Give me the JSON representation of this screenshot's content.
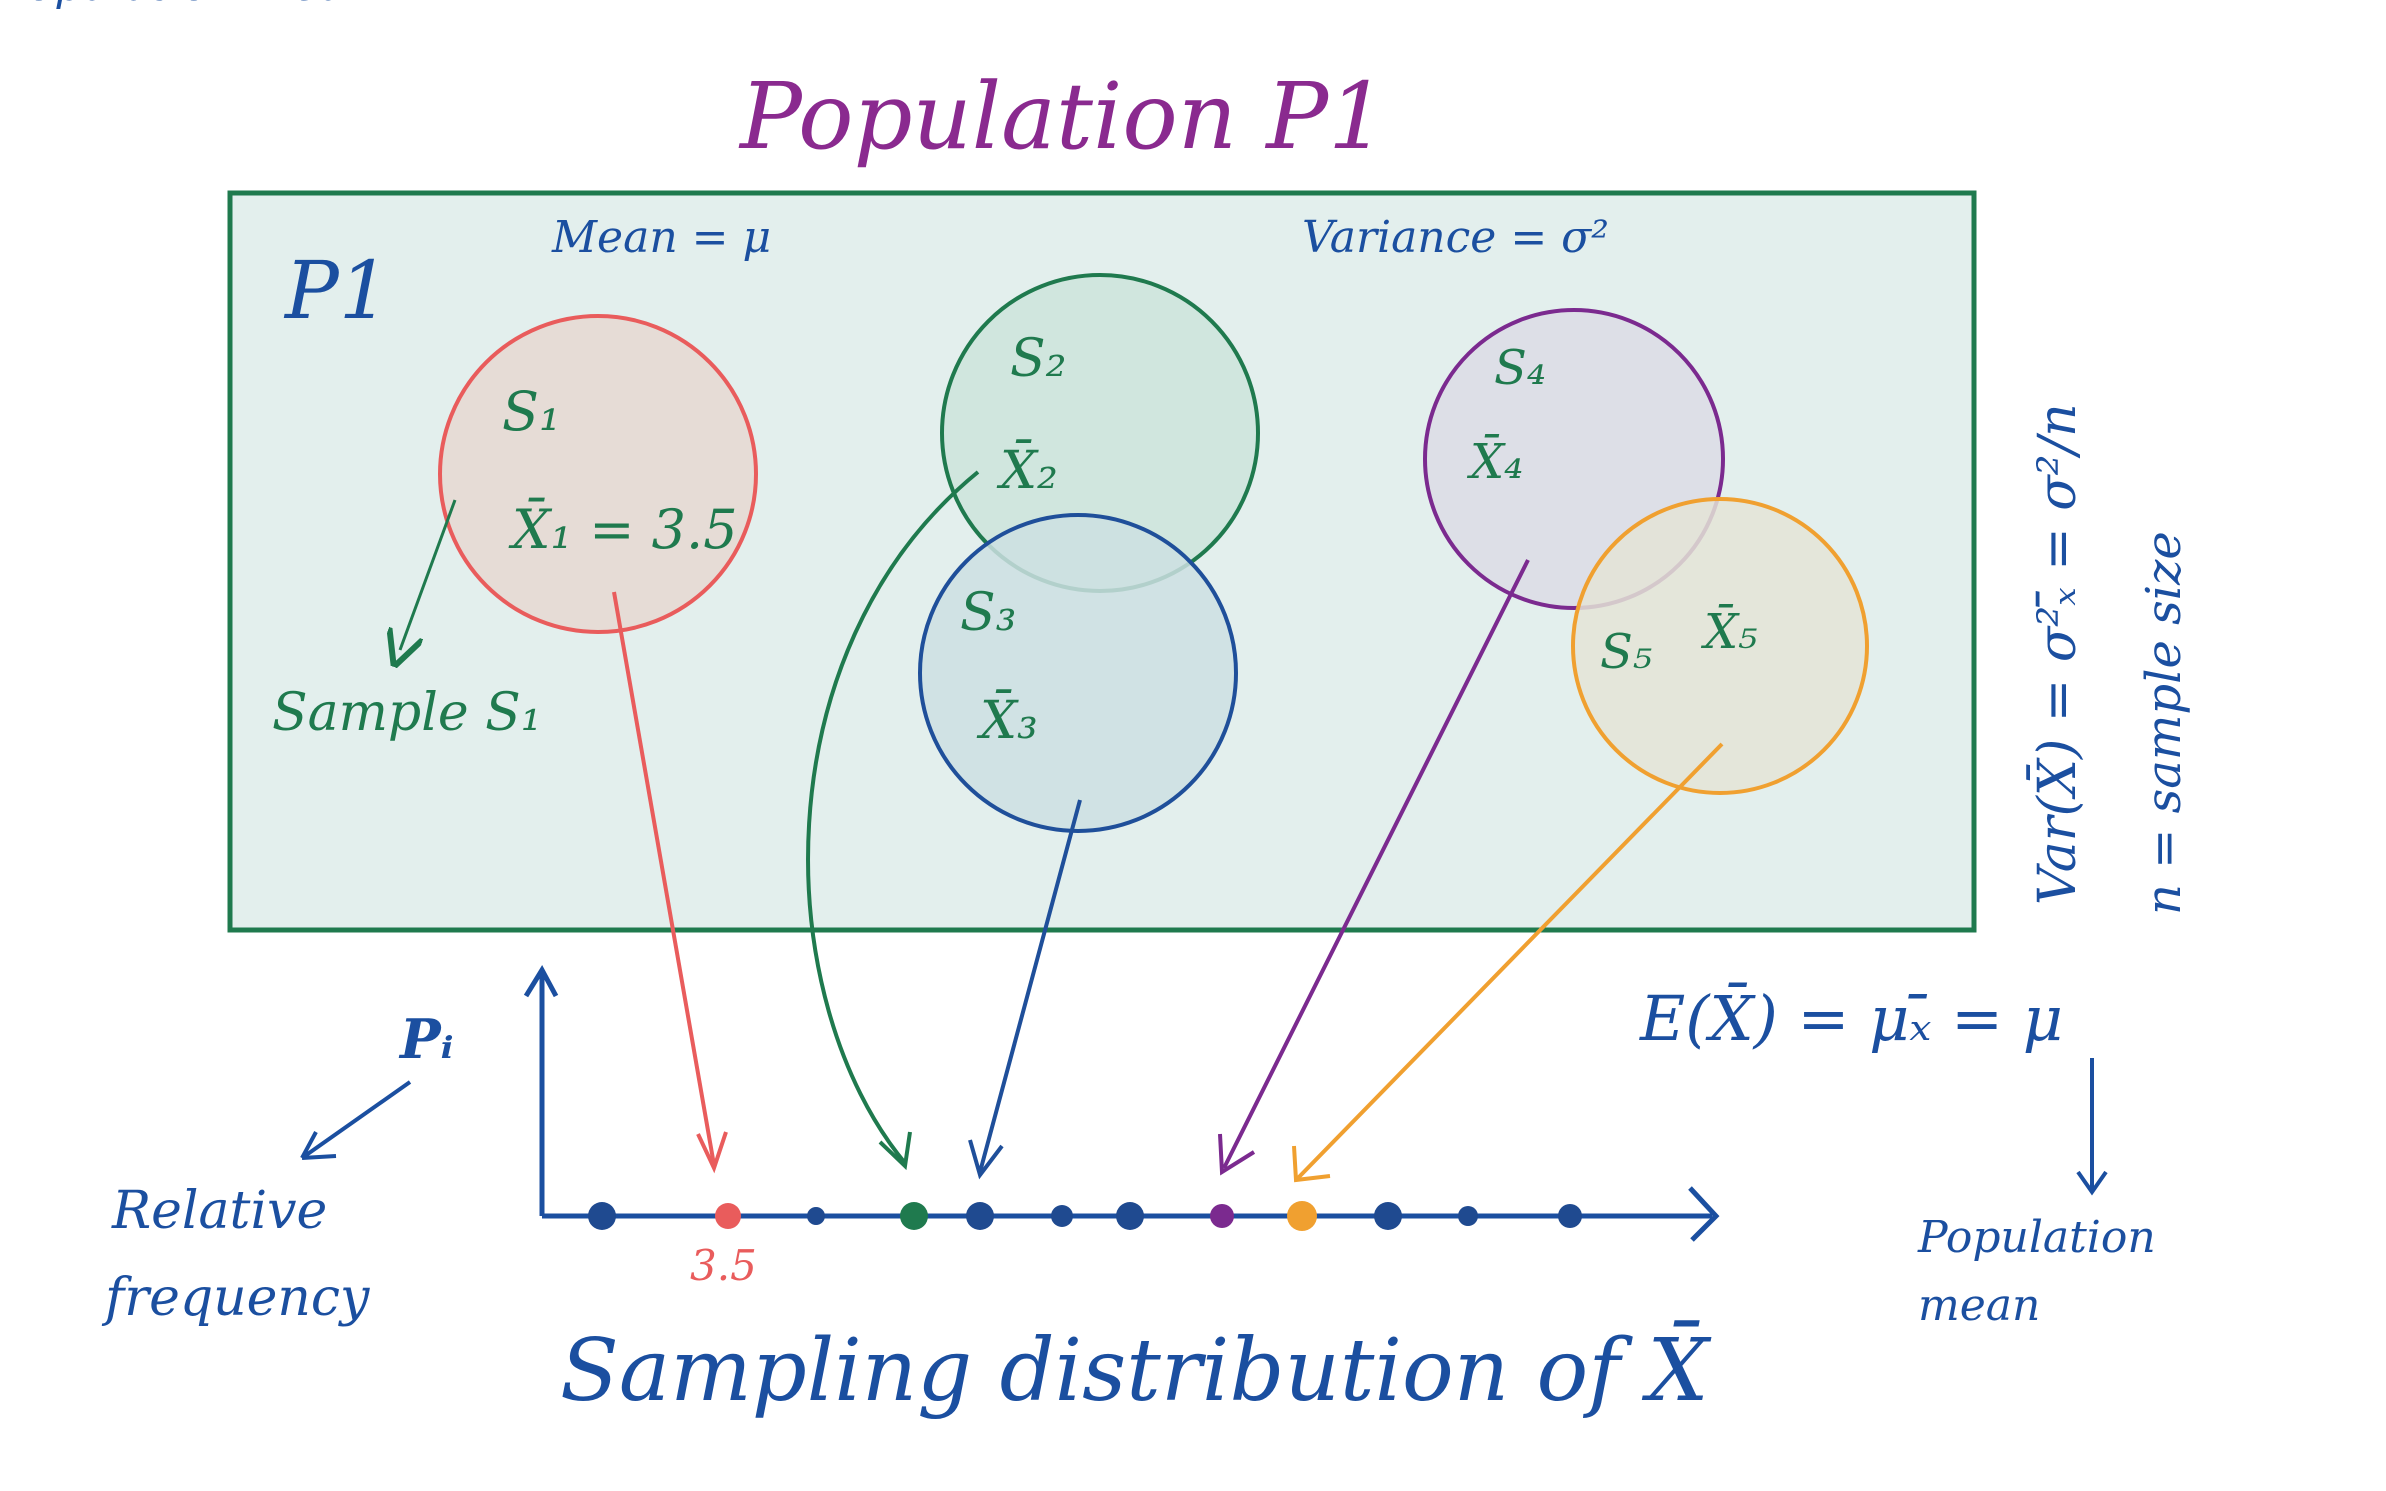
{
  "title": "Population P1",
  "population": {
    "label": "P1",
    "mean_text": "Mean = μ",
    "variance_text": "Variance = σ²"
  },
  "samples": [
    {
      "id": "s1",
      "name": "S₁",
      "mean_label": "X̄₁ = 3.5",
      "color": "#e95c5c",
      "fill": "#e6dcd6"
    },
    {
      "id": "s2",
      "name": "S₂",
      "mean_label": "X̄₂",
      "color": "#1f7a4e",
      "fill": "#cde4da"
    },
    {
      "id": "s3",
      "name": "S₃",
      "mean_label": "X̄₃",
      "color": "#1f4f9a",
      "fill": "#cddfe2"
    },
    {
      "id": "s4",
      "name": "S₄",
      "mean_label": "X̄₄",
      "color": "#7b2a8f",
      "fill": "#dcdde6"
    },
    {
      "id": "s5",
      "name": "S₅",
      "mean_label": "X̄₅",
      "color": "#f0a030",
      "fill": "#e4e4d6"
    }
  ],
  "sample_annotation": "Sample S₁",
  "right_annotations": {
    "variance_formula": "Var(X̄) = σ²ₓ̄ = σ²/n",
    "n_definition": "n = sample size"
  },
  "expectation_formula": "E(X̄) = μₓ̄ = μ",
  "population_mean_label": "Population mean",
  "axis": {
    "y_label": "Pᵢ",
    "y_annotation": "Relative frequency",
    "marked_value": "3.5",
    "x_caption": "Sampling distribution of X̄"
  },
  "colors": {
    "population_border": "#1f7a4e",
    "population_fill": "#e3efed",
    "title": "#8a2a8f",
    "ink_blue": "#1b4fa0",
    "ink_green": "#1f7a4e",
    "axis_dot": "#1f4a90"
  }
}
